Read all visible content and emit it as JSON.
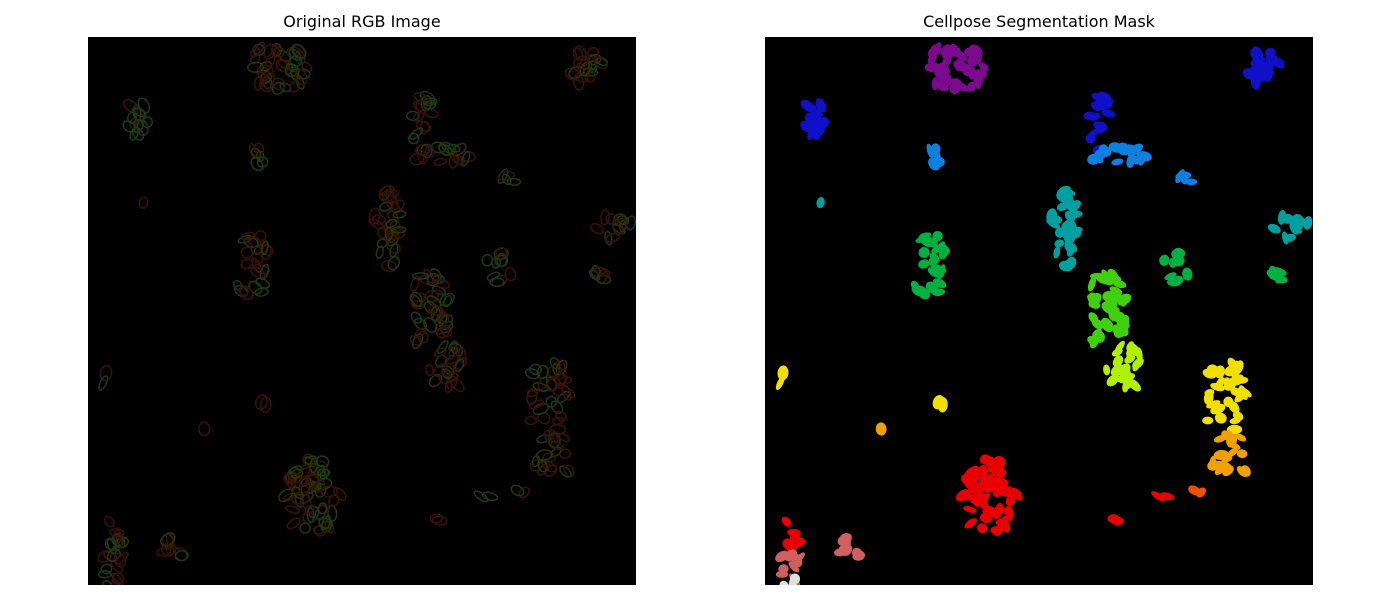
{
  "figure": {
    "panels": [
      {
        "title": "Original RGB Image",
        "content": "microscopy-rgb-image"
      },
      {
        "title": "Cellpose Segmentation Mask",
        "content": "segmentation-mask"
      }
    ]
  },
  "colors": {
    "background": "#ffffff",
    "image_background": "#000000",
    "cell_dim_green": "#1e3a12",
    "cell_dim_red": "#3a1208",
    "mask_palette": [
      "#7b0a8f",
      "#1010c8",
      "#1080e0",
      "#00a0a0",
      "#00b040",
      "#40d010",
      "#b0f000",
      "#f0e000",
      "#f0a000",
      "#f05000",
      "#e80000",
      "#d06060",
      "#e0e0e0"
    ]
  }
}
